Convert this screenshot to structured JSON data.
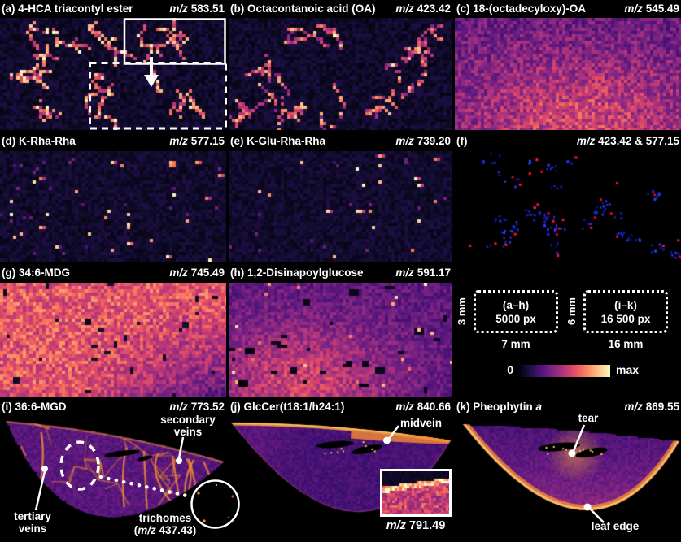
{
  "labels": {
    "mz": "m/z"
  },
  "panels": [
    {
      "id": "a",
      "label": "(a)",
      "title": "4-HCA triacontyl ester",
      "title_italic": "",
      "mz": "583.51",
      "render": "trichome-stars-dense"
    },
    {
      "id": "b",
      "label": "(b)",
      "title": "Octacontanoic acid (OA)",
      "title_italic": "",
      "mz": "423.42",
      "render": "trichome-stars"
    },
    {
      "id": "c",
      "label": "(c)",
      "title": "18-(octadecyloxy)-OA",
      "title_italic": "",
      "mz": "545.49",
      "render": "dense-diffuse"
    },
    {
      "id": "d",
      "label": "(d)",
      "title": "K-Rha-Rha",
      "title_italic": "",
      "mz": "577.15",
      "render": "sparse-dots"
    },
    {
      "id": "e",
      "label": "(e)",
      "title": "K-Glu-Rha-Rha",
      "title_italic": "",
      "mz": "739.20",
      "render": "sparse-dots-few"
    },
    {
      "id": "f",
      "label": "(f)",
      "title": "",
      "title_italic": "",
      "mz": "423.42 & 577.15",
      "render": "red-blue-overlay"
    },
    {
      "id": "g",
      "label": "(g)",
      "title": "34:6-MDG",
      "title_italic": "",
      "mz": "745.49",
      "render": "bright-field"
    },
    {
      "id": "h",
      "label": "(h)",
      "title": "1,2-Disinapoylglucose",
      "title_italic": "",
      "mz": "591.17",
      "render": "mottled-field"
    },
    {
      "id": "i",
      "label": "(i)",
      "title": "36:6-MGD",
      "title_italic": "",
      "mz": "773.52",
      "render": "leaf-veins"
    },
    {
      "id": "j",
      "label": "(j)",
      "title": "GlcCer(t18:1/h24:1)",
      "title_italic": "",
      "mz": "840.66",
      "render": "leaf-top-band",
      "inset_mz": "791.49"
    },
    {
      "id": "k",
      "label": "(k)",
      "title": "Pheophytin",
      "title_italic": " a",
      "mz": "869.55",
      "render": "leaf-bottom-band"
    }
  ],
  "legend": {
    "box_ah": {
      "range": "(a–h)",
      "pixels": "5000 px",
      "height_label": "3 mm",
      "width_label": "7 mm"
    },
    "box_ik": {
      "range": "(i–k)",
      "pixels": "16 500 px",
      "height_label": "6 mm",
      "width_label": "16 mm"
    },
    "colorbar": {
      "min": "0",
      "max": "max",
      "colors": [
        "#000004",
        "#1d1147",
        "#51127c",
        "#822681",
        "#b63679",
        "#e65164",
        "#fb8861",
        "#fec287",
        "#fcfdbf"
      ]
    }
  },
  "annotations": {
    "secondary_veins": {
      "line1": "secondary",
      "line2": "veins"
    },
    "tertiary_veins": {
      "line1": "tertiary",
      "line2": "veins"
    },
    "trichomes": {
      "line1": "trichomes",
      "open": "(",
      "rest": " 437.43)"
    },
    "midvein": "midvein",
    "tear": "tear",
    "leaf_edge": "leaf edge"
  },
  "overlay_colors": {
    "blue": "#1e2cf0",
    "red": "#ff1420",
    "sparkle": "#ffd348"
  }
}
